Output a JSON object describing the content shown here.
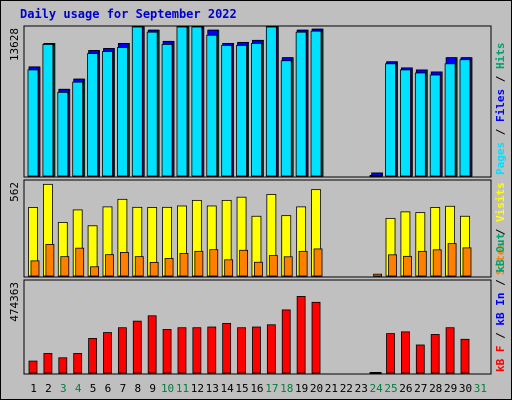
{
  "chart_data": {
    "type": "bar",
    "title": "Daily usage for September 2022",
    "x": [
      "1",
      "2",
      "3",
      "4",
      "5",
      "6",
      "7",
      "8",
      "9",
      "10",
      "11",
      "12",
      "13",
      "14",
      "15",
      "16",
      "17",
      "18",
      "19",
      "20",
      "21",
      "22",
      "23",
      "24",
      "25",
      "26",
      "27",
      "28",
      "29",
      "30",
      "31"
    ],
    "weekend_days": [
      "3",
      "4",
      "10",
      "11",
      "17",
      "18",
      "24",
      "25",
      "31"
    ],
    "panels": [
      {
        "name": "hits-files-pages",
        "ytick": "13628",
        "ymax": 13628,
        "right_label": [
          {
            "text": "Pages",
            "color": "#00e0ff"
          },
          {
            "text": " / ",
            "color": "#000000"
          },
          {
            "text": "Files",
            "color": "#0000ff"
          },
          {
            "text": " / ",
            "color": "#000000"
          },
          {
            "text": "Hits",
            "color": "#00a070"
          }
        ],
        "series": [
          {
            "name": "Hits",
            "color": "#00a070",
            "values": [
              10700,
              13000,
              8500,
              9500,
              12300,
              12500,
              13000,
              15000,
              14300,
              13200,
              15000,
              15000,
              14300,
              13000,
              13100,
              13300,
              16800,
              11600,
              14300,
              14400,
              0,
              0,
              0,
              300,
              11200,
              10600,
              10400,
              10200,
              11600,
              11600,
              0
            ]
          },
          {
            "name": "Files",
            "color": "#0000ff",
            "values": [
              10700,
              13000,
              8500,
              9500,
              12300,
              12500,
              13000,
              15000,
              14300,
              13200,
              15000,
              15000,
              14300,
              13000,
              13100,
              13300,
              16800,
              11600,
              14300,
              14400,
              0,
              0,
              0,
              300,
              11200,
              10600,
              10400,
              10200,
              11600,
              11600,
              0
            ]
          },
          {
            "name": "Pages",
            "color": "#00e0ff",
            "values": [
              10400,
              12900,
              8200,
              9200,
              12000,
              12200,
              12600,
              14700,
              14100,
              12900,
              14900,
              14900,
              13800,
              12800,
              12800,
              13000,
              16700,
              11300,
              14100,
              14200,
              0,
              0,
              0,
              0,
              11000,
              10400,
              10100,
              9900,
              11000,
              11400,
              0
            ]
          }
        ]
      },
      {
        "name": "visits-sites",
        "ytick": "562",
        "ymax": 562,
        "right_label": [
          {
            "text": "Sites",
            "color": "#ff8000"
          },
          {
            "text": " / ",
            "color": "#000000"
          },
          {
            "text": "Visits",
            "color": "#ffff00"
          }
        ],
        "series": [
          {
            "name": "Visits",
            "color": "#ffff00",
            "values": [
              453,
              606,
              354,
              437,
              332,
              457,
              507,
              454,
              453,
              454,
              463,
              500,
              463,
              500,
              521,
              395,
              539,
              399,
              457,
              571,
              0,
              0,
              0,
              0,
              381,
              424,
              419,
              453,
              461,
              395,
              0
            ]
          },
          {
            "name": "Sites",
            "color": "#ff8000",
            "values": [
              100,
              209,
              128,
              184,
              61,
              141,
              156,
              128,
              90,
              116,
              149,
              163,
              174,
              107,
              170,
              91,
              135,
              127,
              163,
              179,
              0,
              0,
              0,
              12,
              140,
              130,
              163,
              173,
              214,
              186,
              0
            ]
          }
        ]
      },
      {
        "name": "kbf-kbin-kbout",
        "ytick": "474363",
        "ymax": 474363,
        "right_label": [
          {
            "text": "kB F",
            "color": "#ff0000"
          },
          {
            "text": " / ",
            "color": "#000000"
          },
          {
            "text": "kB In",
            "color": "#0000ff"
          },
          {
            "text": " / ",
            "color": "#000000"
          },
          {
            "text": "kB Out",
            "color": "#00a070"
          }
        ],
        "series": [
          {
            "name": "kB F",
            "color": "#ff0000",
            "values": [
              69000,
              113000,
              88000,
              113000,
              200000,
              234000,
              262000,
              300000,
              331000,
              252000,
              262000,
              262000,
              266000,
              287000,
              262000,
              266000,
              279000,
              365000,
              443000,
              409000,
              0,
              0,
              0,
              0,
              228000,
              238000,
              162000,
              223000,
              262000,
              195000,
              0
            ]
          }
        ]
      }
    ]
  }
}
